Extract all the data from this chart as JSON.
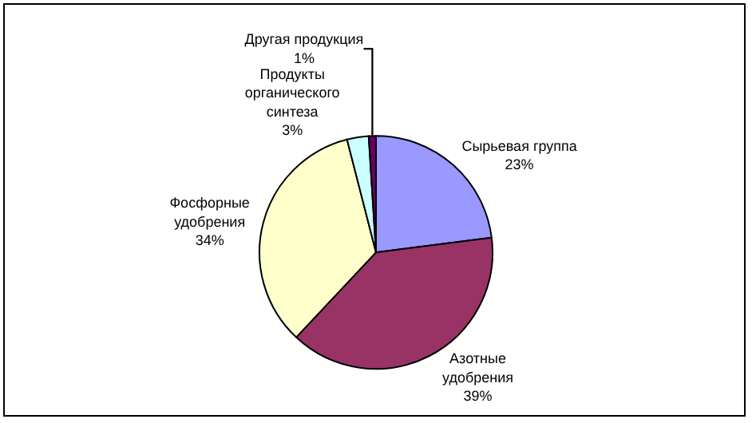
{
  "chart_data": {
    "type": "pie",
    "categories": [
      "Сырьевая группа",
      "Азотные удобрения",
      "Фосфорные удобрения",
      "Продукты органического синтеза",
      "Другая продукция"
    ],
    "values": [
      23,
      39,
      34,
      3,
      1
    ],
    "value_labels": [
      "23%",
      "39%",
      "34%",
      "3%",
      "1%"
    ],
    "colors": [
      "#9999ff",
      "#993366",
      "#ffffcc",
      "#ccffff",
      "#660066"
    ],
    "legend": false
  }
}
